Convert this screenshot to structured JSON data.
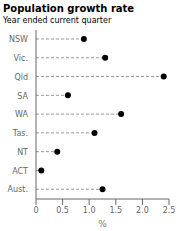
{
  "chart_data": {
    "type": "dot",
    "orientation": "horizontal",
    "title": "Population growth rate",
    "subtitle": "Year ended current quarter",
    "xlabel": "%",
    "categories": [
      "NSW",
      "Vic.",
      "Qld",
      "SA",
      "WA",
      "Tas.",
      "NT",
      "ACT",
      "Aust."
    ],
    "values": [
      0.9,
      1.3,
      2.4,
      0.6,
      1.6,
      1.1,
      0.4,
      0.1,
      1.25
    ],
    "xlim": [
      0,
      2.5
    ],
    "xticks": [
      0,
      0.5,
      {
        "value": 1,
        "label": "1.0"
      },
      1.5,
      {
        "value": 2,
        "label": "2.0"
      },
      2.5
    ],
    "color": "black",
    "marker": "circle",
    "line_style": "dashed",
    "grid": false
  }
}
